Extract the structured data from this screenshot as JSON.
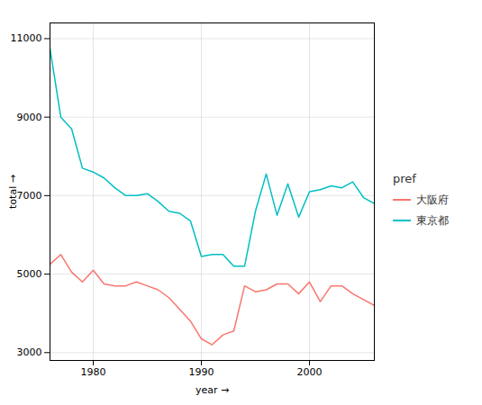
{
  "chart_data": {
    "type": "line",
    "x": [
      1976,
      1977,
      1978,
      1979,
      1980,
      1981,
      1982,
      1983,
      1984,
      1985,
      1986,
      1987,
      1988,
      1989,
      1990,
      1991,
      1992,
      1993,
      1994,
      1995,
      1996,
      1997,
      1998,
      1999,
      2000,
      2001,
      2002,
      2003,
      2004,
      2005,
      2006
    ],
    "series": [
      {
        "name": "大阪府",
        "color": "#F8766D",
        "values": [
          5250,
          5500,
          5050,
          4800,
          5100,
          4750,
          4700,
          4700,
          4800,
          4700,
          4600,
          4400,
          4100,
          3800,
          3350,
          3200,
          3450,
          3550,
          4700,
          4550,
          4600,
          4750,
          4750,
          4500,
          4800,
          4300,
          4700,
          4700,
          4500,
          4350,
          4200
        ]
      },
      {
        "name": "東京都",
        "color": "#00BFC4",
        "values": [
          10750,
          9000,
          8700,
          7700,
          7600,
          7450,
          7200,
          7000,
          7000,
          7050,
          6850,
          6600,
          6550,
          6350,
          5450,
          5500,
          5500,
          5200,
          5200,
          6600,
          7550,
          6500,
          7300,
          6450,
          7100,
          7150,
          7250,
          7200,
          7350,
          6950,
          6800
        ]
      }
    ],
    "legend_title": "pref",
    "legend": "right",
    "xlabel": "year",
    "ylabel": "total",
    "xlim": [
      1976,
      2006
    ],
    "xticks": [
      1980,
      1990,
      2000
    ],
    "ylim": [
      2800,
      11400
    ],
    "yticks": [
      3000,
      5000,
      7000,
      9000,
      11000
    ],
    "grid": true
  }
}
